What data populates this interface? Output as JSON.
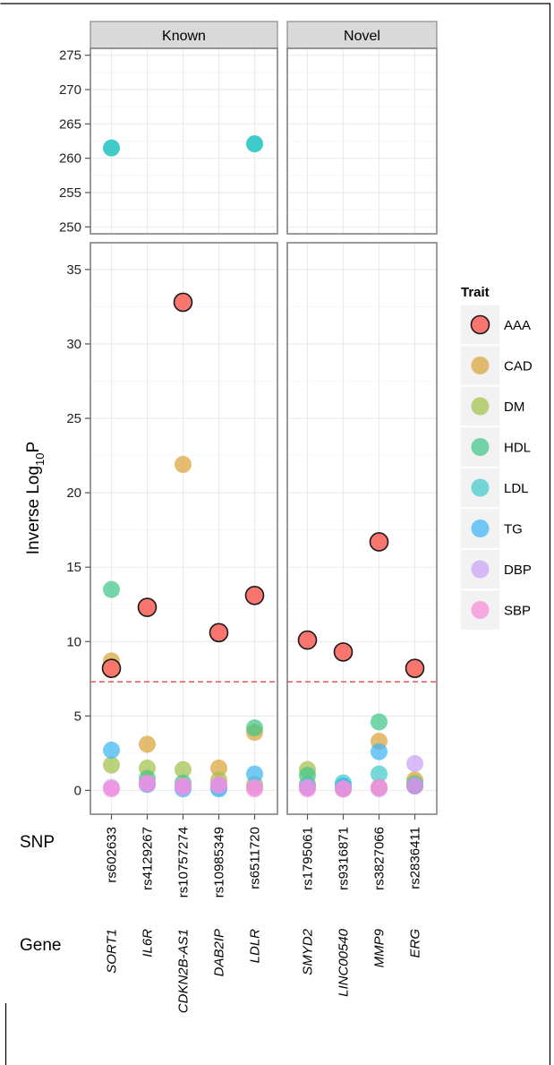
{
  "chart_data": {
    "type": "scatter",
    "facets": [
      "Known",
      "Novel"
    ],
    "ylabel": {
      "main": "Inverse Log",
      "sub": "10",
      "tail": "P"
    },
    "top_panel": {
      "ylim": [
        249,
        276
      ],
      "ticks": [
        "250",
        "255",
        "260",
        "265",
        "270",
        "275"
      ]
    },
    "bottom_panel": {
      "ylim": [
        -1.6,
        36.8
      ],
      "ticks": [
        "0",
        "5",
        "10",
        "15",
        "20",
        "25",
        "30",
        "35"
      ]
    },
    "threshold": {
      "y": 7.3,
      "color": "#e8323c",
      "style": "dashed"
    },
    "snp_axis_title": "SNP",
    "gene_axis_title": "Gene",
    "categories": {
      "Known": [
        {
          "snp": "rs602633",
          "gene": "SORT1"
        },
        {
          "snp": "rs4129267",
          "gene": "IL6R"
        },
        {
          "snp": "rs10757274",
          "gene": "CDKN2B-AS1"
        },
        {
          "snp": "rs10985349",
          "gene": "DAB2IP"
        },
        {
          "snp": "rs6511720",
          "gene": "LDLR"
        }
      ],
      "Novel": [
        {
          "snp": "rs1795061",
          "gene": "SMYD2"
        },
        {
          "snp": "rs9316871",
          "gene": "LINC00540"
        },
        {
          "snp": "rs3827066",
          "gene": "MMP9"
        },
        {
          "snp": "rs2836411",
          "gene": "ERG"
        }
      ]
    },
    "legend": {
      "title": "Trait",
      "items": [
        {
          "label": "AAA",
          "color": "#f8766d"
        },
        {
          "label": "CAD",
          "color": "#d9a43a"
        },
        {
          "label": "DM",
          "color": "#a3c14a"
        },
        {
          "label": "HDL",
          "color": "#3ec688"
        },
        {
          "label": "LDL",
          "color": "#3ecbc9"
        },
        {
          "label": "TG",
          "color": "#3fb6f4"
        },
        {
          "label": "DBP",
          "color": "#c9a2f7"
        },
        {
          "label": "SBP",
          "color": "#f68bd9"
        }
      ]
    },
    "series": [
      {
        "name": "AAA",
        "points": [
          {
            "facet": "Known",
            "i": 0,
            "y": 8.2
          },
          {
            "facet": "Known",
            "i": 1,
            "y": 12.3
          },
          {
            "facet": "Known",
            "i": 2,
            "y": 32.8
          },
          {
            "facet": "Known",
            "i": 3,
            "y": 10.6
          },
          {
            "facet": "Known",
            "i": 4,
            "y": 13.1
          },
          {
            "facet": "Novel",
            "i": 0,
            "y": 10.1
          },
          {
            "facet": "Novel",
            "i": 1,
            "y": 9.3
          },
          {
            "facet": "Novel",
            "i": 2,
            "y": 16.7
          },
          {
            "facet": "Novel",
            "i": 3,
            "y": 8.2
          }
        ]
      },
      {
        "name": "CAD",
        "points": [
          {
            "facet": "Known",
            "i": 0,
            "y": 8.7
          },
          {
            "facet": "Known",
            "i": 1,
            "y": 3.1
          },
          {
            "facet": "Known",
            "i": 2,
            "y": 21.9
          },
          {
            "facet": "Known",
            "i": 3,
            "y": 1.5
          },
          {
            "facet": "Known",
            "i": 4,
            "y": 3.9
          },
          {
            "facet": "Novel",
            "i": 0,
            "y": 0.4
          },
          {
            "facet": "Novel",
            "i": 1,
            "y": 0.1
          },
          {
            "facet": "Novel",
            "i": 2,
            "y": 3.3
          },
          {
            "facet": "Novel",
            "i": 3,
            "y": 0.7
          }
        ]
      },
      {
        "name": "DM",
        "points": [
          {
            "facet": "Known",
            "i": 0,
            "y": 1.7
          },
          {
            "facet": "Known",
            "i": 1,
            "y": 1.5
          },
          {
            "facet": "Known",
            "i": 2,
            "y": 1.4
          },
          {
            "facet": "Known",
            "i": 3,
            "y": 0.7
          },
          {
            "facet": "Known",
            "i": 4,
            "y": 0.4
          },
          {
            "facet": "Novel",
            "i": 0,
            "y": 1.4
          },
          {
            "facet": "Novel",
            "i": 1,
            "y": 0.1
          },
          {
            "facet": "Novel",
            "i": 2,
            "y": 0.2
          },
          {
            "facet": "Novel",
            "i": 3,
            "y": 0.5
          }
        ]
      },
      {
        "name": "HDL",
        "points": [
          {
            "facet": "Known",
            "i": 0,
            "y": 13.5
          },
          {
            "facet": "Known",
            "i": 1,
            "y": 0.8
          },
          {
            "facet": "Known",
            "i": 2,
            "y": 0.5
          },
          {
            "facet": "Known",
            "i": 3,
            "y": 0.3
          },
          {
            "facet": "Known",
            "i": 4,
            "y": 4.2
          },
          {
            "facet": "Novel",
            "i": 0,
            "y": 1.0
          },
          {
            "facet": "Novel",
            "i": 1,
            "y": 0.2
          },
          {
            "facet": "Novel",
            "i": 2,
            "y": 4.6
          },
          {
            "facet": "Novel",
            "i": 3,
            "y": 0.3
          }
        ]
      },
      {
        "name": "LDL",
        "points": [
          {
            "facet": "Known",
            "i": 0,
            "y": 261.5
          },
          {
            "facet": "Known",
            "i": 1,
            "y": 0.4
          },
          {
            "facet": "Known",
            "i": 2,
            "y": 0.2
          },
          {
            "facet": "Known",
            "i": 3,
            "y": 0.2
          },
          {
            "facet": "Known",
            "i": 4,
            "y": 262.1
          },
          {
            "facet": "Novel",
            "i": 0,
            "y": 0.3
          },
          {
            "facet": "Novel",
            "i": 1,
            "y": 0.5
          },
          {
            "facet": "Novel",
            "i": 2,
            "y": 1.1
          },
          {
            "facet": "Novel",
            "i": 3,
            "y": 0.4
          }
        ]
      },
      {
        "name": "TG",
        "points": [
          {
            "facet": "Known",
            "i": 0,
            "y": 2.7
          },
          {
            "facet": "Known",
            "i": 1,
            "y": 0.4
          },
          {
            "facet": "Known",
            "i": 2,
            "y": 0.1
          },
          {
            "facet": "Known",
            "i": 3,
            "y": 0.1
          },
          {
            "facet": "Known",
            "i": 4,
            "y": 1.1
          },
          {
            "facet": "Novel",
            "i": 0,
            "y": 0.2
          },
          {
            "facet": "Novel",
            "i": 1,
            "y": 0.3
          },
          {
            "facet": "Novel",
            "i": 2,
            "y": 2.6
          },
          {
            "facet": "Novel",
            "i": 3,
            "y": 0.3
          }
        ]
      },
      {
        "name": "DBP",
        "points": [
          {
            "facet": "Known",
            "i": 0,
            "y": 0.2
          },
          {
            "facet": "Known",
            "i": 1,
            "y": 0.4
          },
          {
            "facet": "Known",
            "i": 2,
            "y": 0.2
          },
          {
            "facet": "Known",
            "i": 3,
            "y": 0.3
          },
          {
            "facet": "Known",
            "i": 4,
            "y": 0.2
          },
          {
            "facet": "Novel",
            "i": 0,
            "y": 0.2
          },
          {
            "facet": "Novel",
            "i": 1,
            "y": 0.1
          },
          {
            "facet": "Novel",
            "i": 2,
            "y": 0.1
          },
          {
            "facet": "Novel",
            "i": 3,
            "y": 1.8
          }
        ]
      },
      {
        "name": "SBP",
        "points": [
          {
            "facet": "Known",
            "i": 0,
            "y": 0.1
          },
          {
            "facet": "Known",
            "i": 1,
            "y": 0.5
          },
          {
            "facet": "Known",
            "i": 2,
            "y": 0.3
          },
          {
            "facet": "Known",
            "i": 3,
            "y": 0.4
          },
          {
            "facet": "Known",
            "i": 4,
            "y": 0.1
          },
          {
            "facet": "Novel",
            "i": 0,
            "y": 0.1
          },
          {
            "facet": "Novel",
            "i": 1,
            "y": 0.1
          },
          {
            "facet": "Novel",
            "i": 2,
            "y": 0.2
          },
          {
            "facet": "Novel",
            "i": 3,
            "y": 0.3
          }
        ]
      }
    ]
  }
}
